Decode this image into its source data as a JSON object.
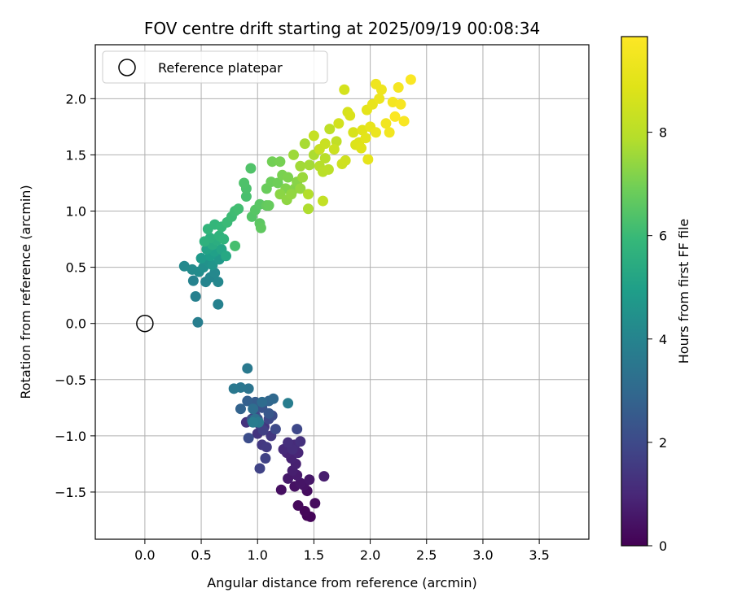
{
  "chart_data": {
    "type": "scatter",
    "title": "FOV centre drift starting at 2025/09/19 00:08:34",
    "xlabel": "Angular distance from reference (arcmin)",
    "ylabel": "Rotation from reference (arcmin)",
    "xlim": [
      -0.44,
      3.94
    ],
    "ylim": [
      -1.92,
      2.48
    ],
    "xticks": [
      0.0,
      0.5,
      1.0,
      1.5,
      2.0,
      2.5,
      3.0,
      3.5
    ],
    "yticks": [
      -1.5,
      -1.0,
      -0.5,
      0.0,
      0.5,
      1.0,
      1.5,
      2.0
    ],
    "xtick_labels": [
      "0.0",
      "0.5",
      "1.0",
      "1.5",
      "2.0",
      "2.5",
      "3.0",
      "3.5"
    ],
    "ytick_labels": [
      "−1.5",
      "−1.0",
      "−0.5",
      "0.0",
      "0.5",
      "1.0",
      "1.5",
      "2.0"
    ],
    "grid": true,
    "legend": {
      "position": "top-left",
      "entries": [
        "Reference platepar"
      ]
    },
    "reference_point": {
      "x": 0.0,
      "y": 0.0
    },
    "colorbar": {
      "label": "Hours from first FF file",
      "range": [
        0,
        9.85
      ],
      "ticks": [
        0,
        2,
        4,
        6,
        8
      ],
      "tick_labels": [
        "0",
        "2",
        "4",
        "6",
        "8"
      ],
      "colormap": "viridis"
    },
    "points": [
      {
        "x": 1.44,
        "y": -1.71,
        "t": 0.05
      },
      {
        "x": 1.47,
        "y": -1.72,
        "t": 0.1
      },
      {
        "x": 1.42,
        "y": -1.67,
        "t": 0.15
      },
      {
        "x": 1.36,
        "y": -1.62,
        "t": 0.2
      },
      {
        "x": 1.51,
        "y": -1.6,
        "t": 0.25
      },
      {
        "x": 1.44,
        "y": -1.49,
        "t": 0.3
      },
      {
        "x": 1.21,
        "y": -1.48,
        "t": 0.35
      },
      {
        "x": 1.33,
        "y": -1.45,
        "t": 0.4
      },
      {
        "x": 1.41,
        "y": -1.44,
        "t": 0.45
      },
      {
        "x": 1.38,
        "y": -1.42,
        "t": 0.5
      },
      {
        "x": 1.46,
        "y": -1.39,
        "t": 0.55
      },
      {
        "x": 1.27,
        "y": -1.38,
        "t": 0.6
      },
      {
        "x": 1.35,
        "y": -1.35,
        "t": 0.65
      },
      {
        "x": 1.59,
        "y": -1.36,
        "t": 0.7
      },
      {
        "x": 1.31,
        "y": -1.31,
        "t": 0.75
      },
      {
        "x": 1.34,
        "y": -1.25,
        "t": 0.8
      },
      {
        "x": 1.3,
        "y": -1.2,
        "t": 0.85
      },
      {
        "x": 1.26,
        "y": -1.15,
        "t": 0.9
      },
      {
        "x": 1.36,
        "y": -1.15,
        "t": 0.95
      },
      {
        "x": 1.28,
        "y": -1.1,
        "t": 1.0
      },
      {
        "x": 1.23,
        "y": -1.12,
        "t": 1.05
      },
      {
        "x": 1.33,
        "y": -1.08,
        "t": 1.1
      },
      {
        "x": 1.31,
        "y": -1.12,
        "t": 1.15
      },
      {
        "x": 1.27,
        "y": -1.06,
        "t": 1.2
      },
      {
        "x": 1.38,
        "y": -1.05,
        "t": 1.25
      },
      {
        "x": 0.9,
        "y": -0.88,
        "t": 1.3
      },
      {
        "x": 1.0,
        "y": -0.98,
        "t": 1.35
      },
      {
        "x": 1.06,
        "y": -0.92,
        "t": 1.4
      },
      {
        "x": 1.12,
        "y": -1.0,
        "t": 1.45
      },
      {
        "x": 1.04,
        "y": -1.08,
        "t": 1.5
      },
      {
        "x": 1.08,
        "y": -1.1,
        "t": 1.55
      },
      {
        "x": 0.95,
        "y": -0.85,
        "t": 1.6
      },
      {
        "x": 1.02,
        "y": -0.9,
        "t": 1.65
      },
      {
        "x": 1.05,
        "y": -0.95,
        "t": 1.7
      },
      {
        "x": 1.07,
        "y": -1.2,
        "t": 1.75
      },
      {
        "x": 1.02,
        "y": -1.29,
        "t": 1.8
      },
      {
        "x": 0.98,
        "y": -0.82,
        "t": 1.85
      },
      {
        "x": 1.1,
        "y": -0.85,
        "t": 1.9
      },
      {
        "x": 1.35,
        "y": -0.94,
        "t": 1.95
      },
      {
        "x": 1.16,
        "y": -0.94,
        "t": 2.0
      },
      {
        "x": 1.13,
        "y": -0.82,
        "t": 2.05
      },
      {
        "x": 0.92,
        "y": -1.02,
        "t": 2.1
      },
      {
        "x": 1.0,
        "y": -0.85,
        "t": 2.2
      },
      {
        "x": 1.04,
        "y": -0.75,
        "t": 2.3
      },
      {
        "x": 1.1,
        "y": -0.8,
        "t": 2.4
      },
      {
        "x": 0.95,
        "y": -0.86,
        "t": 2.5
      },
      {
        "x": 0.98,
        "y": -0.7,
        "t": 2.6
      },
      {
        "x": 0.91,
        "y": -0.69,
        "t": 2.7
      },
      {
        "x": 0.85,
        "y": -0.76,
        "t": 2.8
      },
      {
        "x": 1.1,
        "y": -0.69,
        "t": 2.9
      },
      {
        "x": 1.14,
        "y": -0.67,
        "t": 3.0
      },
      {
        "x": 1.04,
        "y": -0.7,
        "t": 3.1
      },
      {
        "x": 0.96,
        "y": -0.76,
        "t": 3.2
      },
      {
        "x": 0.98,
        "y": -0.85,
        "t": 3.3
      },
      {
        "x": 0.92,
        "y": -0.58,
        "t": 3.4
      },
      {
        "x": 0.85,
        "y": -0.57,
        "t": 3.5
      },
      {
        "x": 0.79,
        "y": -0.58,
        "t": 3.55
      },
      {
        "x": 0.91,
        "y": -0.4,
        "t": 3.6
      },
      {
        "x": 1.01,
        "y": -0.88,
        "t": 3.65
      },
      {
        "x": 0.96,
        "y": -0.88,
        "t": 3.7
      },
      {
        "x": 1.27,
        "y": -0.71,
        "t": 3.75
      },
      {
        "x": 0.47,
        "y": 0.01,
        "t": 3.8
      },
      {
        "x": 0.45,
        "y": 0.24,
        "t": 3.85
      },
      {
        "x": 0.65,
        "y": 0.17,
        "t": 3.9
      },
      {
        "x": 0.43,
        "y": 0.38,
        "t": 3.95
      },
      {
        "x": 0.54,
        "y": 0.37,
        "t": 4.0
      },
      {
        "x": 0.58,
        "y": 0.41,
        "t": 4.05
      },
      {
        "x": 0.65,
        "y": 0.37,
        "t": 4.1
      },
      {
        "x": 0.62,
        "y": 0.45,
        "t": 4.15
      },
      {
        "x": 0.35,
        "y": 0.51,
        "t": 4.2
      },
      {
        "x": 0.42,
        "y": 0.48,
        "t": 4.25
      },
      {
        "x": 0.48,
        "y": 0.46,
        "t": 4.3
      },
      {
        "x": 0.52,
        "y": 0.5,
        "t": 4.4
      },
      {
        "x": 0.56,
        "y": 0.55,
        "t": 4.5
      },
      {
        "x": 0.6,
        "y": 0.52,
        "t": 4.6
      },
      {
        "x": 0.66,
        "y": 0.57,
        "t": 4.7
      },
      {
        "x": 0.5,
        "y": 0.58,
        "t": 4.8
      },
      {
        "x": 0.58,
        "y": 0.6,
        "t": 4.9
      },
      {
        "x": 0.62,
        "y": 0.64,
        "t": 5.0
      },
      {
        "x": 0.55,
        "y": 0.66,
        "t": 5.1
      },
      {
        "x": 0.68,
        "y": 0.66,
        "t": 5.2
      },
      {
        "x": 0.72,
        "y": 0.6,
        "t": 5.3
      },
      {
        "x": 0.6,
        "y": 0.7,
        "t": 5.4
      },
      {
        "x": 0.64,
        "y": 0.74,
        "t": 5.5
      },
      {
        "x": 0.58,
        "y": 0.76,
        "t": 5.6
      },
      {
        "x": 0.53,
        "y": 0.73,
        "t": 5.65
      },
      {
        "x": 0.66,
        "y": 0.78,
        "t": 5.7
      },
      {
        "x": 0.7,
        "y": 0.75,
        "t": 5.75
      },
      {
        "x": 0.56,
        "y": 0.84,
        "t": 5.8
      },
      {
        "x": 0.62,
        "y": 0.88,
        "t": 5.85
      },
      {
        "x": 0.68,
        "y": 0.86,
        "t": 5.9
      },
      {
        "x": 0.73,
        "y": 0.9,
        "t": 6.0
      },
      {
        "x": 0.77,
        "y": 0.95,
        "t": 6.05
      },
      {
        "x": 0.8,
        "y": 1.0,
        "t": 6.1
      },
      {
        "x": 0.83,
        "y": 1.02,
        "t": 6.15
      },
      {
        "x": 0.8,
        "y": 0.69,
        "t": 6.2
      },
      {
        "x": 0.9,
        "y": 1.13,
        "t": 6.25
      },
      {
        "x": 0.9,
        "y": 1.2,
        "t": 6.3
      },
      {
        "x": 0.88,
        "y": 1.25,
        "t": 6.35
      },
      {
        "x": 0.94,
        "y": 1.38,
        "t": 6.4
      },
      {
        "x": 0.95,
        "y": 0.95,
        "t": 6.45
      },
      {
        "x": 0.98,
        "y": 1.01,
        "t": 6.5
      },
      {
        "x": 1.02,
        "y": 1.06,
        "t": 6.55
      },
      {
        "x": 1.02,
        "y": 0.89,
        "t": 6.6
      },
      {
        "x": 1.03,
        "y": 0.85,
        "t": 6.65
      },
      {
        "x": 1.08,
        "y": 1.05,
        "t": 6.7
      },
      {
        "x": 1.1,
        "y": 1.05,
        "t": 6.75
      },
      {
        "x": 1.08,
        "y": 1.2,
        "t": 6.8
      },
      {
        "x": 1.12,
        "y": 1.26,
        "t": 6.85
      },
      {
        "x": 1.18,
        "y": 1.25,
        "t": 6.9
      },
      {
        "x": 1.13,
        "y": 1.44,
        "t": 6.95
      },
      {
        "x": 1.2,
        "y": 1.44,
        "t": 7.0
      },
      {
        "x": 1.22,
        "y": 1.32,
        "t": 7.05
      },
      {
        "x": 1.27,
        "y": 1.3,
        "t": 7.1
      },
      {
        "x": 1.25,
        "y": 1.2,
        "t": 7.15
      },
      {
        "x": 1.33,
        "y": 1.2,
        "t": 7.2
      },
      {
        "x": 1.35,
        "y": 1.26,
        "t": 7.25
      },
      {
        "x": 1.2,
        "y": 1.15,
        "t": 7.3
      },
      {
        "x": 1.26,
        "y": 1.1,
        "t": 7.35
      },
      {
        "x": 1.3,
        "y": 1.15,
        "t": 7.4
      },
      {
        "x": 1.38,
        "y": 1.2,
        "t": 7.45
      },
      {
        "x": 1.4,
        "y": 1.3,
        "t": 7.5
      },
      {
        "x": 1.32,
        "y": 1.5,
        "t": 7.55
      },
      {
        "x": 1.38,
        "y": 1.4,
        "t": 7.6
      },
      {
        "x": 1.46,
        "y": 1.41,
        "t": 7.65
      },
      {
        "x": 1.42,
        "y": 1.6,
        "t": 7.7
      },
      {
        "x": 1.5,
        "y": 1.5,
        "t": 7.75
      },
      {
        "x": 1.45,
        "y": 1.02,
        "t": 7.8
      },
      {
        "x": 1.45,
        "y": 1.15,
        "t": 7.85
      },
      {
        "x": 1.55,
        "y": 1.4,
        "t": 7.9
      },
      {
        "x": 1.6,
        "y": 1.47,
        "t": 7.95
      },
      {
        "x": 1.58,
        "y": 1.35,
        "t": 8.0
      },
      {
        "x": 1.63,
        "y": 1.37,
        "t": 8.05
      },
      {
        "x": 1.64,
        "y": 1.73,
        "t": 8.1
      },
      {
        "x": 1.7,
        "y": 1.62,
        "t": 8.15
      },
      {
        "x": 1.58,
        "y": 1.09,
        "t": 8.2
      },
      {
        "x": 1.5,
        "y": 1.67,
        "t": 8.25
      },
      {
        "x": 1.55,
        "y": 1.55,
        "t": 8.3
      },
      {
        "x": 1.6,
        "y": 1.6,
        "t": 8.35
      },
      {
        "x": 1.68,
        "y": 1.55,
        "t": 8.4
      },
      {
        "x": 1.75,
        "y": 1.42,
        "t": 8.45
      },
      {
        "x": 1.78,
        "y": 1.45,
        "t": 8.5
      },
      {
        "x": 1.72,
        "y": 1.78,
        "t": 8.55
      },
      {
        "x": 1.77,
        "y": 2.08,
        "t": 8.6
      },
      {
        "x": 1.8,
        "y": 1.88,
        "t": 8.65
      },
      {
        "x": 1.85,
        "y": 1.7,
        "t": 8.7
      },
      {
        "x": 1.82,
        "y": 1.85,
        "t": 8.75
      },
      {
        "x": 1.87,
        "y": 1.59,
        "t": 8.8
      },
      {
        "x": 1.9,
        "y": 1.61,
        "t": 8.85
      },
      {
        "x": 1.92,
        "y": 1.56,
        "t": 8.9
      },
      {
        "x": 1.93,
        "y": 1.72,
        "t": 8.95
      },
      {
        "x": 1.96,
        "y": 1.65,
        "t": 9.0
      },
      {
        "x": 1.97,
        "y": 1.9,
        "t": 9.05
      },
      {
        "x": 1.98,
        "y": 1.46,
        "t": 9.1
      },
      {
        "x": 2.0,
        "y": 1.75,
        "t": 9.15
      },
      {
        "x": 2.02,
        "y": 1.95,
        "t": 9.2
      },
      {
        "x": 2.05,
        "y": 1.7,
        "t": 9.25
      },
      {
        "x": 2.08,
        "y": 2.0,
        "t": 9.3
      },
      {
        "x": 2.1,
        "y": 2.08,
        "t": 9.35
      },
      {
        "x": 2.05,
        "y": 2.13,
        "t": 9.4
      },
      {
        "x": 2.14,
        "y": 1.78,
        "t": 9.45
      },
      {
        "x": 2.17,
        "y": 1.7,
        "t": 9.5
      },
      {
        "x": 2.2,
        "y": 1.97,
        "t": 9.55
      },
      {
        "x": 2.25,
        "y": 2.1,
        "t": 9.6
      },
      {
        "x": 2.27,
        "y": 1.95,
        "t": 9.65
      },
      {
        "x": 2.3,
        "y": 1.8,
        "t": 9.7
      },
      {
        "x": 2.36,
        "y": 2.17,
        "t": 9.75
      },
      {
        "x": 2.22,
        "y": 1.84,
        "t": 9.8
      }
    ]
  }
}
